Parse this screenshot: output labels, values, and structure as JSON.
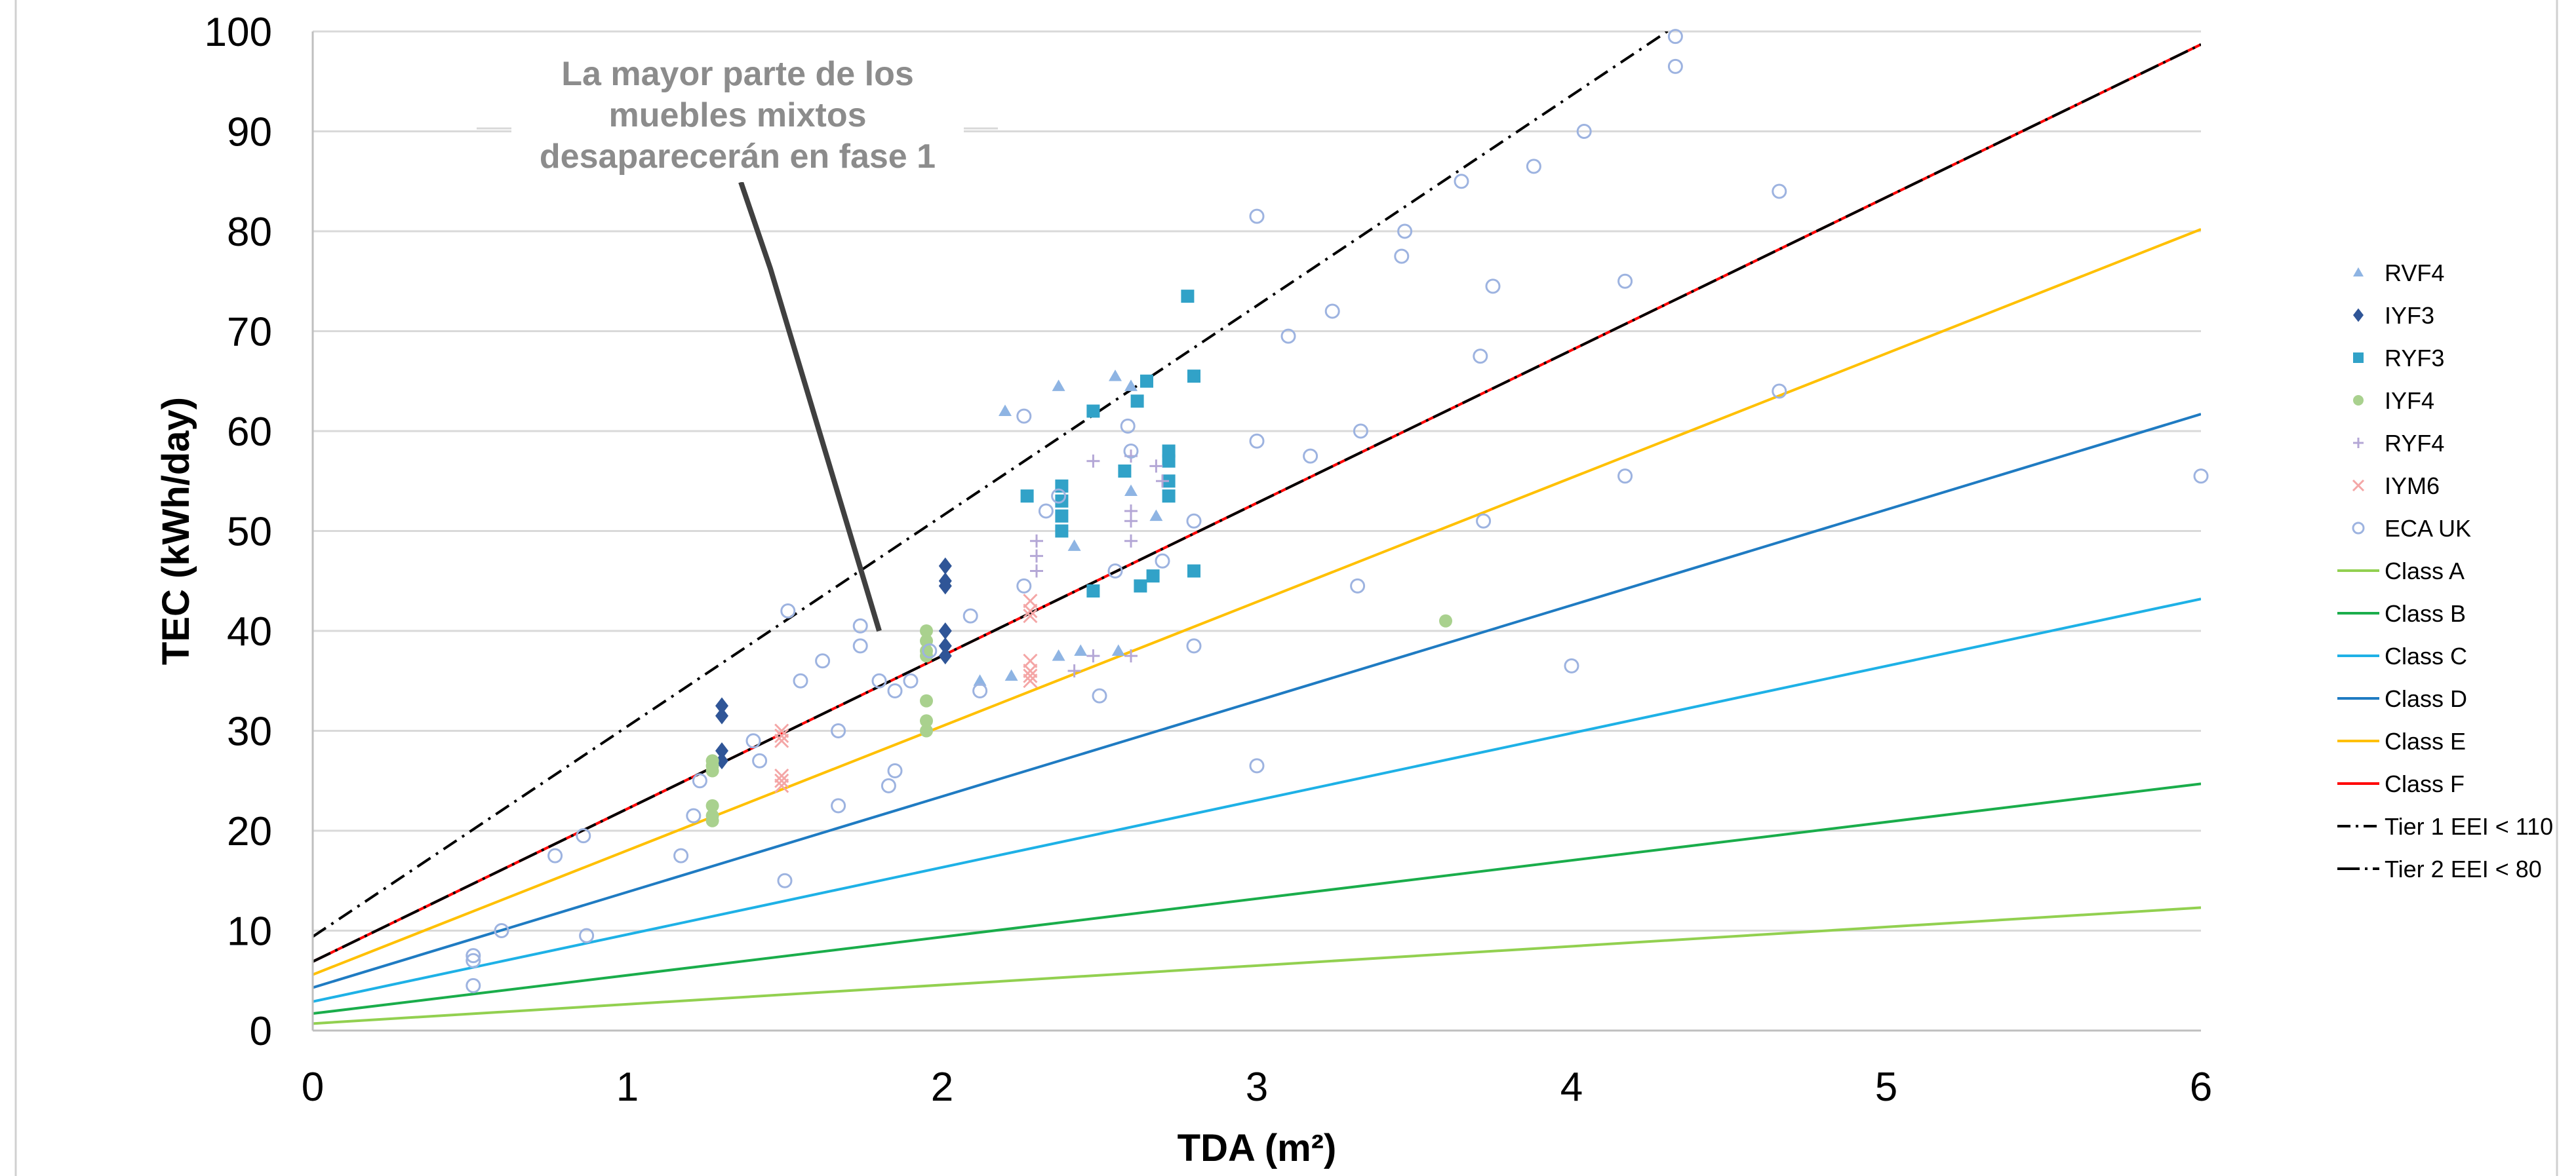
{
  "chart_data": {
    "type": "scatter",
    "xlabel": "TDA (m²)",
    "ylabel": "TEC (kWh/day)",
    "xlim": [
      0,
      6
    ],
    "ylim": [
      0,
      100
    ],
    "x_ticks": [
      "0",
      "1",
      "2",
      "3",
      "4",
      "5",
      "6"
    ],
    "y_ticks": [
      "0",
      "10",
      "20",
      "30",
      "40",
      "50",
      "60",
      "70",
      "80",
      "90",
      "100"
    ],
    "grid": "horizontal",
    "legend_position": "right",
    "annotation": {
      "text_lines": [
        "La mayor parte de los",
        "muebles mixtos",
        "desaparecerán en fase 1"
      ],
      "points_to": [
        1.8,
        40
      ]
    },
    "scatter_series": [
      {
        "name": "RVF4",
        "marker": "triangle",
        "color": "#8EB4E3",
        "points": [
          [
            2.2,
            62
          ],
          [
            2.37,
            64.5
          ],
          [
            2.55,
            65.5
          ],
          [
            2.6,
            64.5
          ],
          [
            2.68,
            51.5
          ],
          [
            2.42,
            48.5
          ],
          [
            2.6,
            54
          ],
          [
            2.12,
            35
          ],
          [
            2.22,
            35.5
          ],
          [
            2.37,
            37.5
          ],
          [
            2.44,
            38
          ],
          [
            2.56,
            38
          ]
        ]
      },
      {
        "name": "IYF3",
        "marker": "diamond",
        "color": "#2F5597",
        "points": [
          [
            1.3,
            32.5
          ],
          [
            1.3,
            31.5
          ],
          [
            1.3,
            28
          ],
          [
            1.3,
            27
          ],
          [
            2.01,
            46.5
          ],
          [
            2.01,
            45
          ],
          [
            2.01,
            44.5
          ],
          [
            2.01,
            40
          ],
          [
            2.01,
            38.5
          ],
          [
            2.01,
            37.5
          ]
        ]
      },
      {
        "name": "RYF3",
        "marker": "square",
        "color": "#31A2C8",
        "points": [
          [
            2.38,
            54.5
          ],
          [
            2.38,
            53
          ],
          [
            2.38,
            51.5
          ],
          [
            2.38,
            50
          ],
          [
            2.27,
            53.5
          ],
          [
            2.48,
            62
          ],
          [
            2.62,
            63
          ],
          [
            2.58,
            56
          ],
          [
            2.65,
            65
          ],
          [
            2.72,
            58
          ],
          [
            2.72,
            57
          ],
          [
            2.72,
            55
          ],
          [
            2.72,
            53.5
          ],
          [
            2.78,
            73.5
          ],
          [
            2.8,
            65.5
          ],
          [
            2.48,
            44
          ],
          [
            2.63,
            44.5
          ],
          [
            2.67,
            45.5
          ],
          [
            2.8,
            46
          ]
        ]
      },
      {
        "name": "IYF4",
        "marker": "circle",
        "color": "#A9D18E",
        "points": [
          [
            1.27,
            27
          ],
          [
            1.27,
            26.5
          ],
          [
            1.27,
            26
          ],
          [
            1.27,
            22.5
          ],
          [
            1.27,
            21.5
          ],
          [
            1.27,
            21
          ],
          [
            1.95,
            40
          ],
          [
            1.95,
            39
          ],
          [
            1.95,
            38
          ],
          [
            1.95,
            37.5
          ],
          [
            1.95,
            33
          ],
          [
            1.95,
            31
          ],
          [
            1.95,
            30
          ],
          [
            3.6,
            41
          ]
        ]
      },
      {
        "name": "RYF4",
        "marker": "plus",
        "color": "#B4A7D6",
        "points": [
          [
            2.3,
            49
          ],
          [
            2.3,
            47.5
          ],
          [
            2.3,
            46
          ],
          [
            2.48,
            57
          ],
          [
            2.6,
            52
          ],
          [
            2.6,
            51
          ],
          [
            2.6,
            49
          ],
          [
            2.6,
            57.5
          ],
          [
            2.68,
            56.5
          ],
          [
            2.7,
            55
          ],
          [
            2.48,
            37.5
          ],
          [
            2.6,
            37.5
          ],
          [
            2.42,
            36
          ]
        ]
      },
      {
        "name": "IYM6",
        "marker": "cross",
        "color": "#F4A6A6",
        "points": [
          [
            1.49,
            30
          ],
          [
            1.49,
            29.5
          ],
          [
            1.49,
            29
          ],
          [
            1.49,
            25.5
          ],
          [
            1.49,
            25
          ],
          [
            1.49,
            24.5
          ],
          [
            2.28,
            43
          ],
          [
            2.28,
            42
          ],
          [
            2.28,
            41.5
          ],
          [
            2.28,
            37
          ],
          [
            2.28,
            36
          ],
          [
            2.28,
            35.5
          ],
          [
            2.28,
            35
          ]
        ]
      },
      {
        "name": "ECA UK",
        "marker": "open-circle",
        "color": "#9DB3E0",
        "points": [
          [
            0.51,
            7.5
          ],
          [
            0.51,
            7
          ],
          [
            0.51,
            4.5
          ],
          [
            0.6,
            10
          ],
          [
            0.77,
            17.5
          ],
          [
            0.86,
            19.5
          ],
          [
            0.87,
            9.5
          ],
          [
            1.17,
            17.5
          ],
          [
            1.21,
            21.5
          ],
          [
            1.23,
            25
          ],
          [
            1.4,
            29
          ],
          [
            1.42,
            27
          ],
          [
            1.5,
            15
          ],
          [
            1.51,
            42
          ],
          [
            1.55,
            35
          ],
          [
            1.62,
            37
          ],
          [
            1.67,
            30
          ],
          [
            1.67,
            22.5
          ],
          [
            1.74,
            38.5
          ],
          [
            1.74,
            40.5
          ],
          [
            1.8,
            35
          ],
          [
            1.83,
            24.5
          ],
          [
            1.85,
            26
          ],
          [
            1.85,
            34
          ],
          [
            1.9,
            35
          ],
          [
            1.96,
            38
          ],
          [
            2.09,
            41.5
          ],
          [
            2.12,
            34
          ],
          [
            2.26,
            44.5
          ],
          [
            2.26,
            61.5
          ],
          [
            2.33,
            52
          ],
          [
            2.37,
            53.5
          ],
          [
            2.5,
            33.5
          ],
          [
            2.55,
            46
          ],
          [
            2.59,
            60.5
          ],
          [
            2.6,
            58
          ],
          [
            2.7,
            47
          ],
          [
            2.8,
            51
          ],
          [
            2.8,
            38.5
          ],
          [
            3.0,
            81.5
          ],
          [
            3.0,
            59
          ],
          [
            3.0,
            26.5
          ],
          [
            3.1,
            69.5
          ],
          [
            3.17,
            57.5
          ],
          [
            3.24,
            72
          ],
          [
            3.32,
            44.5
          ],
          [
            3.33,
            60
          ],
          [
            3.46,
            77.5
          ],
          [
            3.47,
            80
          ],
          [
            3.65,
            85
          ],
          [
            3.71,
            67.5
          ],
          [
            3.72,
            51
          ],
          [
            3.75,
            74.5
          ],
          [
            3.88,
            86.5
          ],
          [
            4.0,
            36.5
          ],
          [
            4.04,
            90
          ],
          [
            4.17,
            75
          ],
          [
            4.17,
            55.5
          ],
          [
            4.33,
            99.5
          ],
          [
            4.33,
            96.5
          ],
          [
            4.66,
            84
          ],
          [
            4.66,
            64
          ],
          [
            6.0,
            55.5
          ]
        ]
      }
    ],
    "line_series": [
      {
        "name": "Class A",
        "color": "#92D050",
        "style": "solid",
        "y_at_0": 0.7,
        "y_at_6": 12.3
      },
      {
        "name": "Class B",
        "color": "#1AAD4B",
        "style": "solid",
        "y_at_0": 1.7,
        "y_at_6": 24.7
      },
      {
        "name": "Class C",
        "color": "#1EB1E6",
        "style": "solid",
        "y_at_0": 2.9,
        "y_at_6": 43.2
      },
      {
        "name": "Class D",
        "color": "#1F7BC2",
        "style": "solid",
        "y_at_0": 4.3,
        "y_at_6": 61.7
      },
      {
        "name": "Class E",
        "color": "#FFC000",
        "style": "solid",
        "y_at_0": 5.6,
        "y_at_6": 80.2
      },
      {
        "name": "Class F",
        "color": "#FF0000",
        "style": "solid",
        "y_at_0": 6.9,
        "y_at_6": 98.7
      },
      {
        "name": "Tier 1 EEI < 110",
        "color": "#000000",
        "style": "dash-dot",
        "y_at_0": 9.4,
        "y_at_6": 135.7
      },
      {
        "name": "Tier 2 EEI < 80",
        "color": "#000000",
        "style": "dash-dot-overlay",
        "y_at_0": 6.9,
        "y_at_6": 98.7
      }
    ]
  }
}
